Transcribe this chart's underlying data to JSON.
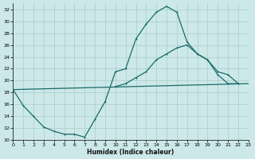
{
  "xlabel": "Humidex (Indice chaleur)",
  "background_color": "#cce8e8",
  "grid_color": "#aacccc",
  "line_color": "#1a6b6b",
  "xlim": [
    0,
    23
  ],
  "ylim": [
    10,
    33
  ],
  "yticks": [
    10,
    12,
    14,
    16,
    18,
    20,
    22,
    24,
    26,
    28,
    30,
    32
  ],
  "xticks": [
    0,
    1,
    2,
    3,
    4,
    5,
    6,
    7,
    8,
    9,
    10,
    11,
    12,
    13,
    14,
    15,
    16,
    17,
    18,
    19,
    20,
    21,
    22,
    23
  ],
  "line1_x": [
    0,
    1,
    2,
    3,
    4,
    5,
    6,
    7,
    8,
    9,
    10,
    11,
    12,
    13,
    14,
    15,
    16,
    17,
    18,
    19,
    20,
    21,
    22,
    23
  ],
  "line1_y": [
    18.5,
    15.8,
    14.0,
    12.2,
    11.5,
    11.0,
    11.0,
    10.5,
    13.5,
    16.5,
    21.5,
    22.0,
    27.0,
    29.5,
    31.5,
    32.5,
    31.5,
    26.5,
    24.5,
    23.5,
    21.0,
    19.5,
    19.5,
    null
  ],
  "line2_x": [
    0,
    1,
    2,
    3,
    4,
    5,
    6,
    7,
    8,
    9,
    10,
    11,
    12,
    13,
    14,
    15,
    16,
    17,
    18,
    19,
    20,
    21,
    22,
    23
  ],
  "line2_y": [
    18.5,
    15.8,
    14.0,
    12.2,
    11.5,
    11.0,
    11.0,
    10.5,
    13.5,
    16.5,
    19.0,
    19.5,
    20.5,
    21.5,
    23.5,
    24.5,
    25.5,
    26.0,
    24.5,
    23.5,
    21.5,
    21.0,
    19.5,
    null
  ],
  "line3_x": [
    0,
    23
  ],
  "line3_y": [
    18.5,
    19.5
  ],
  "marker_x1": [
    0,
    1,
    2,
    3,
    4,
    5,
    6,
    7,
    8,
    9,
    10,
    11,
    12,
    13,
    14,
    15,
    16,
    17,
    18,
    19,
    20,
    21,
    22
  ],
  "marker_y1": [
    18.5,
    15.8,
    14.0,
    12.2,
    11.5,
    11.0,
    11.0,
    10.5,
    13.5,
    16.5,
    21.5,
    22.0,
    27.0,
    29.5,
    31.5,
    32.5,
    31.5,
    26.5,
    24.5,
    23.5,
    21.0,
    19.5,
    19.5
  ],
  "marker_x2": [
    10,
    11,
    12,
    13,
    14,
    15,
    16,
    17,
    18,
    19,
    20,
    21,
    22
  ],
  "marker_y2": [
    19.0,
    19.5,
    20.5,
    21.5,
    23.5,
    24.5,
    25.5,
    26.0,
    24.5,
    23.5,
    21.5,
    21.0,
    19.5
  ]
}
